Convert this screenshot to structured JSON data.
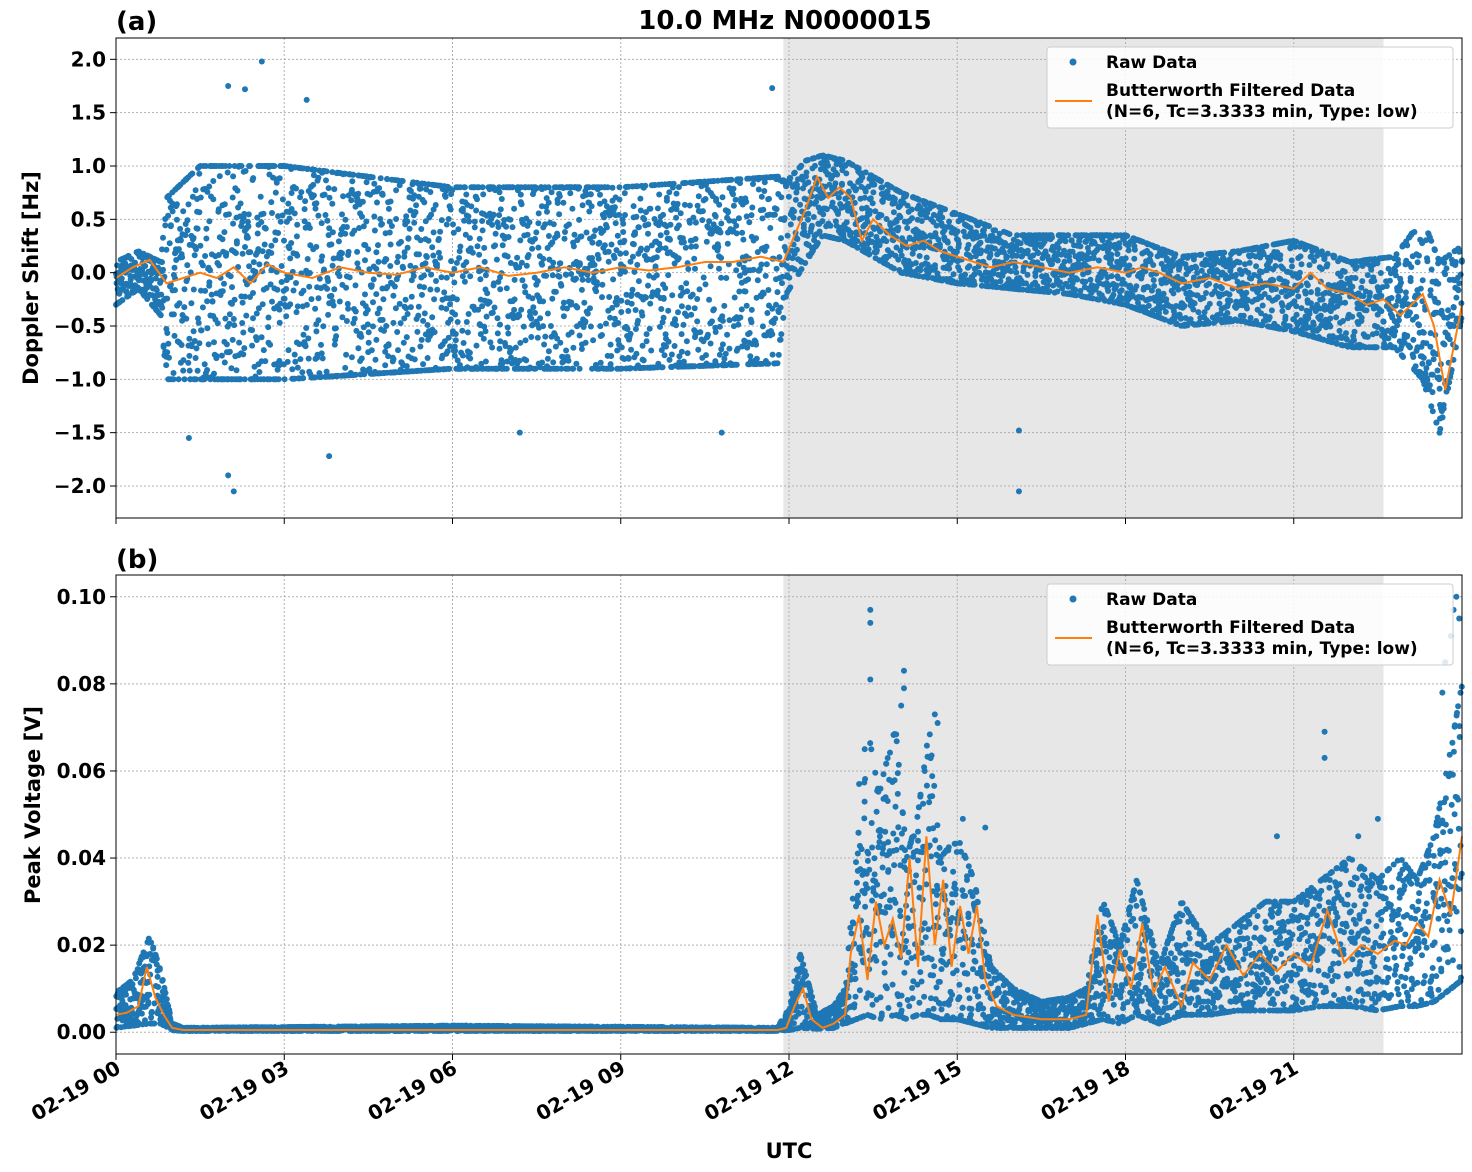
{
  "figure": {
    "title": "10.0 MHz N0000015",
    "xlabel": "UTC"
  },
  "colors": {
    "raw": "#1f77b4",
    "filtered": "#ff7f0e",
    "shade": "#e7e7e7",
    "grid": "#b0b0b0"
  },
  "chart_data": [
    {
      "type": "scatter",
      "panel_label": "(a)",
      "ylabel": "Doppler Shift [Hz]",
      "x_unit": "hours UTC on 02-19",
      "xlim": [
        0,
        24
      ],
      "ylim": [
        -2.3,
        2.2
      ],
      "yticks": [
        -2.0,
        -1.5,
        -1.0,
        -0.5,
        0.0,
        0.5,
        1.0,
        1.5,
        2.0
      ],
      "ytick_labels": [
        "−2.0",
        "−1.5",
        "−1.0",
        "−0.5",
        "0.0",
        "0.5",
        "1.0",
        "1.5",
        "2.0"
      ],
      "shaded_range": [
        11.9,
        22.6
      ],
      "grid": true,
      "legend": {
        "placement": "top-right",
        "raw_label": "Raw Data",
        "filtered_label_1": "Butterworth Filtered Data",
        "filtered_label_2": "(N=6, Tc=3.3333 min, Type: low)"
      },
      "series": [
        {
          "name": "Raw Data",
          "kind": "points",
          "envelope": {
            "x": [
              0,
              0.4,
              0.8,
              0.9,
              1.5,
              3,
              6,
              9,
              11.8,
              11.95,
              12.3,
              12.6,
              13,
              14,
              15,
              16,
              17,
              18,
              19,
              20,
              21,
              22,
              22.8,
              23.3,
              23.6,
              24
            ],
            "upper": [
              0.1,
              0.2,
              0.1,
              0.7,
              1.0,
              1.0,
              0.8,
              0.8,
              0.9,
              0.85,
              1.05,
              1.1,
              1.05,
              0.75,
              0.55,
              0.35,
              0.35,
              0.35,
              0.15,
              0.2,
              0.3,
              0.1,
              0.15,
              0.5,
              0.1,
              0.25
            ],
            "lower": [
              -0.3,
              -0.15,
              -0.4,
              -1.0,
              -1.0,
              -1.0,
              -0.9,
              -0.9,
              -0.85,
              -0.2,
              0.1,
              0.35,
              0.3,
              0.0,
              -0.1,
              -0.15,
              -0.2,
              -0.3,
              -0.5,
              -0.45,
              -0.55,
              -0.7,
              -0.7,
              -1.0,
              -1.5,
              -0.4
            ]
          },
          "outliers": [
            [
              2.6,
              1.98
            ],
            [
              2.0,
              1.75
            ],
            [
              2.3,
              1.72
            ],
            [
              3.4,
              1.62
            ],
            [
              11.7,
              1.73
            ],
            [
              2.1,
              -2.05
            ],
            [
              2.0,
              -1.9
            ],
            [
              16.1,
              -2.05
            ],
            [
              16.1,
              -1.48
            ],
            [
              3.8,
              -1.72
            ],
            [
              7.2,
              -1.5
            ],
            [
              10.8,
              -1.5
            ],
            [
              1.3,
              -1.55
            ]
          ]
        },
        {
          "name": "Butterworth Filtered Data",
          "kind": "line",
          "x": [
            0,
            0.3,
            0.6,
            0.9,
            1.2,
            1.5,
            1.8,
            2.1,
            2.4,
            2.7,
            3,
            3.5,
            4,
            4.5,
            5,
            5.5,
            6,
            6.5,
            7,
            7.5,
            8,
            8.5,
            9,
            9.5,
            10,
            10.5,
            11,
            11.5,
            11.9,
            12.1,
            12.3,
            12.5,
            12.7,
            12.9,
            13.1,
            13.3,
            13.5,
            13.8,
            14.1,
            14.4,
            14.7,
            15,
            15.3,
            15.6,
            16,
            16.5,
            17,
            17.5,
            18,
            18.3,
            18.6,
            19,
            19.5,
            20,
            20.5,
            21,
            21.3,
            21.6,
            22,
            22.3,
            22.6,
            22.9,
            23.1,
            23.3,
            23.5,
            23.7,
            24
          ],
          "y": [
            -0.05,
            0.05,
            0.12,
            -0.1,
            -0.05,
            0.0,
            -0.05,
            0.05,
            -0.1,
            0.08,
            0.0,
            -0.05,
            0.05,
            0.0,
            -0.02,
            0.05,
            0.0,
            0.05,
            -0.03,
            0.0,
            0.05,
            0.0,
            0.05,
            0.02,
            0.05,
            0.1,
            0.1,
            0.15,
            0.1,
            0.35,
            0.6,
            0.9,
            0.7,
            0.8,
            0.7,
            0.3,
            0.5,
            0.35,
            0.25,
            0.3,
            0.2,
            0.15,
            0.1,
            0.05,
            0.1,
            0.05,
            0.0,
            0.05,
            0.0,
            0.05,
            0.0,
            -0.1,
            -0.05,
            -0.15,
            -0.1,
            -0.15,
            0.0,
            -0.15,
            -0.2,
            -0.3,
            -0.25,
            -0.4,
            -0.3,
            -0.2,
            -0.5,
            -1.1,
            -0.3
          ]
        }
      ]
    },
    {
      "type": "scatter",
      "panel_label": "(b)",
      "ylabel": "Peak Voltage [V]",
      "x_unit": "hours UTC on 02-19",
      "xlim": [
        0,
        24
      ],
      "ylim": [
        -0.005,
        0.105
      ],
      "yticks": [
        0.0,
        0.02,
        0.04,
        0.06,
        0.08,
        0.1
      ],
      "ytick_labels": [
        "0.00",
        "0.02",
        "0.04",
        "0.06",
        "0.08",
        "0.10"
      ],
      "xticks": [
        0,
        3,
        6,
        9,
        12,
        15,
        18,
        21
      ],
      "xtick_labels": [
        "02-19 00",
        "02-19 03",
        "02-19 06",
        "02-19 09",
        "02-19 12",
        "02-19 15",
        "02-19 18",
        "02-19 21"
      ],
      "shaded_range": [
        11.9,
        22.6
      ],
      "grid": true,
      "legend": {
        "placement": "top-right",
        "raw_label": "Raw Data",
        "filtered_label_1": "Butterworth Filtered Data",
        "filtered_label_2": "(N=6, Tc=3.3333 min, Type: low)"
      },
      "series": [
        {
          "name": "Raw Data",
          "kind": "points",
          "envelope": {
            "x": [
              0,
              0.3,
              0.6,
              0.8,
              1.0,
              1.2,
              6,
              11.8,
              12.0,
              12.2,
              12.5,
              12.8,
              13.0,
              13.2,
              13.4,
              13.6,
              13.9,
              14.1,
              14.3,
              14.5,
              14.7,
              15.0,
              15.3,
              15.6,
              16.0,
              16.5,
              17.0,
              17.3,
              17.6,
              17.9,
              18.2,
              18.6,
              19.0,
              19.5,
              20.0,
              20.5,
              21.0,
              21.5,
              22.0,
              22.5,
              22.9,
              23.2,
              23.5,
              23.8,
              24
            ],
            "upper": [
              0.009,
              0.012,
              0.022,
              0.014,
              0.002,
              0.001,
              0.0015,
              0.001,
              0.006,
              0.018,
              0.004,
              0.006,
              0.01,
              0.04,
              0.07,
              0.055,
              0.07,
              0.04,
              0.05,
              0.07,
              0.04,
              0.045,
              0.035,
              0.015,
              0.01,
              0.007,
              0.008,
              0.01,
              0.03,
              0.02,
              0.035,
              0.015,
              0.03,
              0.02,
              0.025,
              0.03,
              0.03,
              0.035,
              0.04,
              0.035,
              0.04,
              0.035,
              0.045,
              0.065,
              0.08
            ],
            "lower": [
              0.001,
              0.0015,
              0.002,
              0.002,
              0.0005,
              0.0003,
              0.0003,
              0.0003,
              0.0005,
              0.001,
              0.0008,
              0.001,
              0.002,
              0.003,
              0.004,
              0.003,
              0.004,
              0.003,
              0.004,
              0.004,
              0.003,
              0.003,
              0.002,
              0.001,
              0.001,
              0.001,
              0.001,
              0.002,
              0.003,
              0.002,
              0.004,
              0.002,
              0.004,
              0.004,
              0.005,
              0.005,
              0.005,
              0.006,
              0.006,
              0.005,
              0.006,
              0.006,
              0.007,
              0.01,
              0.012
            ]
          },
          "outliers": [
            [
              13.45,
              0.097
            ],
            [
              13.45,
              0.094
            ],
            [
              13.45,
              0.081
            ],
            [
              13.35,
              0.065
            ],
            [
              13.25,
              0.057
            ],
            [
              14.05,
              0.083
            ],
            [
              14.05,
              0.079
            ],
            [
              14.0,
              0.075
            ],
            [
              14.6,
              0.073
            ],
            [
              14.65,
              0.071
            ],
            [
              15.1,
              0.049
            ],
            [
              15.5,
              0.047
            ],
            [
              21.55,
              0.069
            ],
            [
              21.55,
              0.063
            ],
            [
              23.9,
              0.1
            ],
            [
              23.85,
              0.097
            ],
            [
              23.95,
              0.095
            ],
            [
              23.8,
              0.091
            ],
            [
              23.7,
              0.085
            ],
            [
              23.65,
              0.078
            ],
            [
              22.15,
              0.045
            ],
            [
              20.7,
              0.045
            ],
            [
              22.5,
              0.049
            ]
          ]
        },
        {
          "name": "Butterworth Filtered Data",
          "kind": "line",
          "x": [
            0,
            0.2,
            0.4,
            0.55,
            0.7,
            0.85,
            1.0,
            1.2,
            6,
            11.8,
            11.95,
            12.1,
            12.25,
            12.4,
            12.6,
            12.8,
            13.0,
            13.1,
            13.25,
            13.4,
            13.55,
            13.7,
            13.85,
            14.0,
            14.15,
            14.3,
            14.45,
            14.6,
            14.75,
            14.9,
            15.05,
            15.2,
            15.35,
            15.5,
            15.7,
            16.0,
            16.5,
            17.0,
            17.3,
            17.5,
            17.7,
            17.9,
            18.1,
            18.3,
            18.5,
            18.7,
            19.0,
            19.2,
            19.5,
            19.8,
            20.1,
            20.4,
            20.7,
            21.0,
            21.3,
            21.6,
            21.9,
            22.2,
            22.5,
            22.8,
            23.0,
            23.2,
            23.4,
            23.6,
            23.8,
            24
          ],
          "y": [
            0.004,
            0.0045,
            0.006,
            0.015,
            0.008,
            0.004,
            0.001,
            0.0005,
            0.0005,
            0.0005,
            0.001,
            0.006,
            0.01,
            0.003,
            0.001,
            0.002,
            0.004,
            0.018,
            0.027,
            0.012,
            0.03,
            0.02,
            0.026,
            0.017,
            0.04,
            0.015,
            0.045,
            0.02,
            0.035,
            0.015,
            0.029,
            0.018,
            0.029,
            0.012,
            0.006,
            0.004,
            0.003,
            0.003,
            0.004,
            0.027,
            0.007,
            0.019,
            0.01,
            0.025,
            0.009,
            0.015,
            0.006,
            0.016,
            0.012,
            0.02,
            0.013,
            0.018,
            0.014,
            0.018,
            0.015,
            0.028,
            0.016,
            0.02,
            0.018,
            0.021,
            0.02,
            0.025,
            0.022,
            0.035,
            0.027,
            0.045
          ]
        }
      ]
    }
  ]
}
